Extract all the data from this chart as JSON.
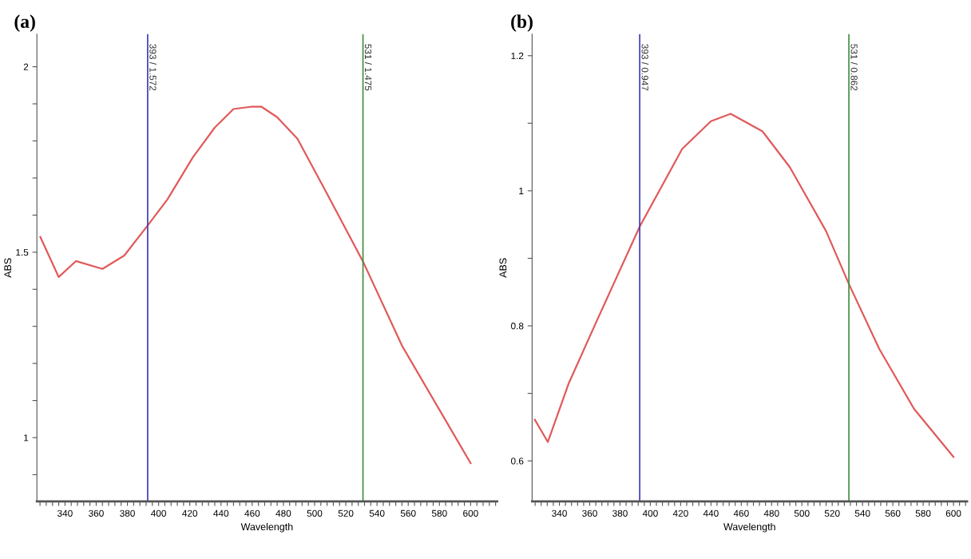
{
  "chart_data": [
    {
      "type": "line",
      "title": "(a)",
      "xlabel": "Wavelength",
      "ylabel": "ABS",
      "xlim": [
        322,
        617
      ],
      "ylim": [
        0.828,
        2.088
      ],
      "xticks": [
        {
          "value": 324,
          "label": null
        },
        {
          "value": 328,
          "label": null
        },
        {
          "value": 332,
          "label": null
        },
        {
          "value": 336,
          "label": null
        },
        340,
        {
          "value": 344,
          "label": null
        },
        {
          "value": 348,
          "label": null
        },
        {
          "value": 352,
          "label": null
        },
        {
          "value": 356,
          "label": null
        },
        360,
        {
          "value": 364,
          "label": null
        },
        {
          "value": 368,
          "label": null
        },
        {
          "value": 372,
          "label": null
        },
        {
          "value": 376,
          "label": null
        },
        380,
        {
          "value": 384,
          "label": null
        },
        {
          "value": 388,
          "label": null
        },
        {
          "value": 392,
          "label": null
        },
        {
          "value": 396,
          "label": null
        },
        400,
        {
          "value": 404,
          "label": null
        },
        {
          "value": 408,
          "label": null
        },
        {
          "value": 412,
          "label": null
        },
        {
          "value": 416,
          "label": null
        },
        420,
        {
          "value": 424,
          "label": null
        },
        {
          "value": 428,
          "label": null
        },
        {
          "value": 432,
          "label": null
        },
        {
          "value": 436,
          "label": null
        },
        440,
        {
          "value": 444,
          "label": null
        },
        {
          "value": 448,
          "label": null
        },
        {
          "value": 452,
          "label": null
        },
        {
          "value": 456,
          "label": null
        },
        460,
        {
          "value": 464,
          "label": null
        },
        {
          "value": 468,
          "label": null
        },
        {
          "value": 472,
          "label": null
        },
        {
          "value": 476,
          "label": null
        },
        480,
        {
          "value": 484,
          "label": null
        },
        {
          "value": 488,
          "label": null
        },
        {
          "value": 492,
          "label": null
        },
        {
          "value": 496,
          "label": null
        },
        500,
        {
          "value": 504,
          "label": null
        },
        {
          "value": 508,
          "label": null
        },
        {
          "value": 512,
          "label": null
        },
        {
          "value": 516,
          "label": null
        },
        520,
        {
          "value": 524,
          "label": null
        },
        {
          "value": 528,
          "label": null
        },
        {
          "value": 532,
          "label": null
        },
        {
          "value": 536,
          "label": null
        },
        540,
        {
          "value": 544,
          "label": null
        },
        {
          "value": 548,
          "label": null
        },
        {
          "value": 552,
          "label": null
        },
        {
          "value": 556,
          "label": null
        },
        560,
        {
          "value": 564,
          "label": null
        },
        {
          "value": 568,
          "label": null
        },
        {
          "value": 572,
          "label": null
        },
        {
          "value": 576,
          "label": null
        },
        580,
        {
          "value": 584,
          "label": null
        },
        {
          "value": 588,
          "label": null
        },
        {
          "value": 592,
          "label": null
        },
        {
          "value": 596,
          "label": null
        },
        600,
        {
          "value": 604,
          "label": null
        },
        {
          "value": 608,
          "label": null
        },
        {
          "value": 612,
          "label": null
        },
        {
          "value": 616,
          "label": null
        }
      ],
      "yticks": [
        {
          "value": 0.9,
          "label": null
        },
        1,
        {
          "value": 1.1,
          "label": null
        },
        {
          "value": 1.2,
          "label": null
        },
        {
          "value": 1.3,
          "label": null
        },
        {
          "value": 1.4,
          "label": null
        },
        1.5,
        {
          "value": 1.6,
          "label": null
        },
        {
          "value": 1.7,
          "label": null
        },
        {
          "value": 1.8,
          "label": null
        },
        {
          "value": 1.9,
          "label": null
        },
        2
      ],
      "grid": false,
      "legend": false,
      "series": [
        {
          "color": "#e05a5a",
          "x": [
            324.2,
            336,
            347,
            364,
            378,
            393,
            405.6,
            422,
            436,
            448,
            459,
            466,
            476,
            489,
            507.4,
            531,
            556,
            580,
            600
          ],
          "values": [
            1.541,
            1.433,
            1.476,
            1.455,
            1.491,
            1.572,
            1.642,
            1.756,
            1.836,
            1.886,
            1.892,
            1.892,
            1.864,
            1.806,
            1.662,
            1.475,
            1.248,
            1.075,
            0.931
          ]
        }
      ],
      "ref_lines": [
        {
          "axis": "x",
          "value": 393,
          "label": "393 / 1.572",
          "color": "#3a3ab8"
        },
        {
          "axis": "x",
          "value": 531,
          "label": "531 / 1.475",
          "color": "#3f8f3f"
        }
      ]
    },
    {
      "type": "line",
      "title": "(b)",
      "xlabel": "Wavelength",
      "ylabel": "ABS",
      "xlim": [
        322,
        609
      ],
      "ylim": [
        0.54,
        1.232
      ],
      "xticks": [
        {
          "value": 324,
          "label": null
        },
        {
          "value": 328,
          "label": null
        },
        {
          "value": 332,
          "label": null
        },
        {
          "value": 336,
          "label": null
        },
        340,
        {
          "value": 344,
          "label": null
        },
        {
          "value": 348,
          "label": null
        },
        {
          "value": 352,
          "label": null
        },
        {
          "value": 356,
          "label": null
        },
        360,
        {
          "value": 364,
          "label": null
        },
        {
          "value": 368,
          "label": null
        },
        {
          "value": 372,
          "label": null
        },
        {
          "value": 376,
          "label": null
        },
        380,
        {
          "value": 384,
          "label": null
        },
        {
          "value": 388,
          "label": null
        },
        {
          "value": 392,
          "label": null
        },
        {
          "value": 396,
          "label": null
        },
        400,
        {
          "value": 404,
          "label": null
        },
        {
          "value": 408,
          "label": null
        },
        {
          "value": 412,
          "label": null
        },
        {
          "value": 416,
          "label": null
        },
        420,
        {
          "value": 424,
          "label": null
        },
        {
          "value": 428,
          "label": null
        },
        {
          "value": 432,
          "label": null
        },
        {
          "value": 436,
          "label": null
        },
        440,
        {
          "value": 444,
          "label": null
        },
        {
          "value": 448,
          "label": null
        },
        {
          "value": 452,
          "label": null
        },
        {
          "value": 456,
          "label": null
        },
        460,
        {
          "value": 464,
          "label": null
        },
        {
          "value": 468,
          "label": null
        },
        {
          "value": 472,
          "label": null
        },
        {
          "value": 476,
          "label": null
        },
        480,
        {
          "value": 484,
          "label": null
        },
        {
          "value": 488,
          "label": null
        },
        {
          "value": 492,
          "label": null
        },
        {
          "value": 496,
          "label": null
        },
        500,
        {
          "value": 504,
          "label": null
        },
        {
          "value": 508,
          "label": null
        },
        {
          "value": 512,
          "label": null
        },
        {
          "value": 516,
          "label": null
        },
        520,
        {
          "value": 524,
          "label": null
        },
        {
          "value": 528,
          "label": null
        },
        {
          "value": 532,
          "label": null
        },
        {
          "value": 536,
          "label": null
        },
        540,
        {
          "value": 544,
          "label": null
        },
        {
          "value": 548,
          "label": null
        },
        {
          "value": 552,
          "label": null
        },
        {
          "value": 556,
          "label": null
        },
        560,
        {
          "value": 564,
          "label": null
        },
        {
          "value": 568,
          "label": null
        },
        {
          "value": 572,
          "label": null
        },
        {
          "value": 576,
          "label": null
        },
        580,
        {
          "value": 584,
          "label": null
        },
        {
          "value": 588,
          "label": null
        },
        {
          "value": 592,
          "label": null
        },
        {
          "value": 596,
          "label": null
        },
        600,
        {
          "value": 604,
          "label": null
        },
        {
          "value": 608,
          "label": null
        }
      ],
      "yticks": [
        0.6,
        {
          "value": 0.7,
          "label": null
        },
        0.8,
        {
          "value": 0.9,
          "label": null
        },
        1,
        {
          "value": 1.1,
          "label": null
        },
        1.2
      ],
      "grid": false,
      "legend": false,
      "series": [
        {
          "color": "#e05a5a",
          "x": [
            323.8,
            332.4,
            346,
            365,
            393,
            421,
            440,
            453,
            474,
            492,
            516,
            531,
            551,
            574,
            600
          ],
          "values": [
            0.661,
            0.628,
            0.714,
            0.809,
            0.947,
            1.062,
            1.103,
            1.114,
            1.088,
            1.035,
            0.94,
            0.862,
            0.766,
            0.677,
            0.606
          ]
        }
      ],
      "ref_lines": [
        {
          "axis": "x",
          "value": 393,
          "label": "393 / 0.947",
          "color": "#3a3ab8"
        },
        {
          "axis": "x",
          "value": 531,
          "label": "531 / 0.862",
          "color": "#3f8f3f"
        }
      ]
    }
  ]
}
